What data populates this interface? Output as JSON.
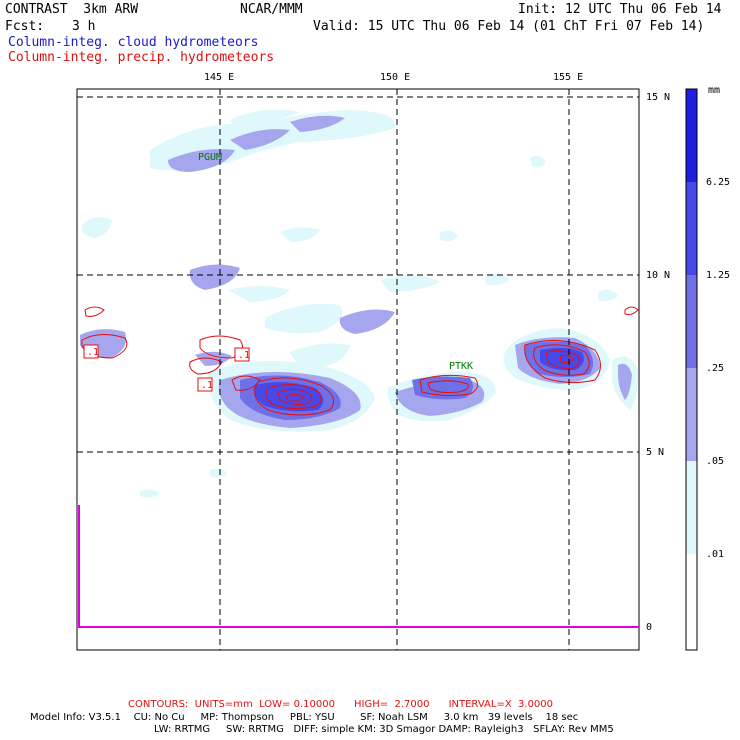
{
  "header": {
    "title": "CONTRAST  3km ARW",
    "org": "NCAR/MMM",
    "init": "Init: 12 UTC Thu 06 Feb 14",
    "fcst_label": "Fcst:",
    "fcst_value": "3 h",
    "valid": "Valid: 15 UTC Thu 06 Feb 14 (01 ChT Fri 07 Feb 14)",
    "field1": "Column-integ. cloud hydrometeors",
    "field2": "Column-integ. precip. hydrometeors"
  },
  "colors": {
    "field1": "#1a1acc",
    "field2": "#e01010",
    "lvl1": "#dff8fb",
    "lvl2": "#a6a6ee",
    "lvl3": "#7070e6",
    "lvl4": "#4848ea",
    "lvl5": "#1e1ee0",
    "contour": "#e01010",
    "sounding": "#e000e0",
    "station": "#007a00"
  },
  "map": {
    "lon_labels": [
      "145 E",
      "150 E",
      "155 E"
    ],
    "lat_labels": [
      "15 N",
      "10 N",
      "5 N",
      "0"
    ],
    "stations": [
      {
        "id": "PGUM"
      },
      {
        "id": "PTKK"
      }
    ],
    "contour_labels": [
      ".1",
      ".1",
      ".1"
    ]
  },
  "colorbar": {
    "unit": "mm",
    "ticks": [
      "6.25",
      "1.25",
      ".25",
      ".05",
      ".01"
    ]
  },
  "footer": {
    "contours_line": "CONTOURS:  UNITS=mm  LOW= 0.10000      HIGH=  2.7000      INTERVAL=X  3.0000",
    "model_line1": "Model Info: V3.5.1    CU: No Cu     MP: Thompson     PBL: YSU        SF: Noah LSM     3.0 km   39 levels    18 sec",
    "model_line2": "LW: RRTMG     SW: RRTMG   DIFF: simple KM: 3D Smagor DAMP: Rayleigh3   SFLAY: Rev MM5"
  }
}
